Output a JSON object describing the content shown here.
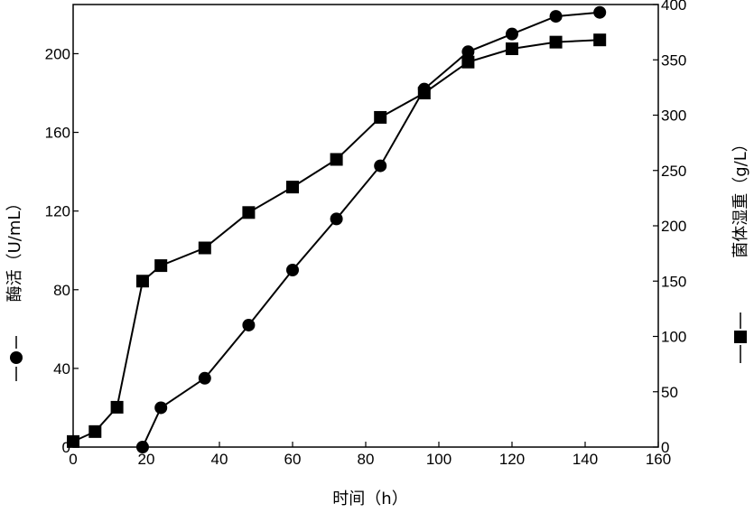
{
  "chart_data": {
    "type": "line",
    "title": "",
    "xlabel": "时间（h）",
    "ylabel_left": "酶活（U/mL）",
    "ylabel_right": "菌体湿重（g/L）",
    "xlim": [
      0,
      160
    ],
    "ylim_left": [
      0,
      225
    ],
    "ylim_right": [
      0,
      400
    ],
    "x_ticks": [
      0,
      20,
      40,
      60,
      80,
      100,
      120,
      140,
      160
    ],
    "y_left_ticks": [
      0,
      40,
      80,
      120,
      160,
      200
    ],
    "y_right_ticks": [
      0,
      50,
      100,
      150,
      200,
      250,
      300,
      350,
      400
    ],
    "grid": false,
    "series": [
      {
        "name": "酶活",
        "axis": "left",
        "marker": "circle",
        "color": "#000000",
        "x": [
          19,
          24,
          36,
          48,
          60,
          72,
          84,
          96,
          108,
          120,
          132,
          144
        ],
        "y": [
          0,
          20,
          35,
          62,
          90,
          116,
          143,
          182,
          201,
          210,
          219,
          221
        ]
      },
      {
        "name": "菌体湿重",
        "axis": "right",
        "marker": "square",
        "color": "#000000",
        "x": [
          0,
          6,
          12,
          19,
          24,
          36,
          48,
          60,
          72,
          84,
          96,
          108,
          120,
          132,
          144
        ],
        "y": [
          5,
          14,
          36,
          150,
          164,
          180,
          212,
          235,
          260,
          298,
          320,
          348,
          360,
          366,
          368
        ]
      }
    ]
  }
}
